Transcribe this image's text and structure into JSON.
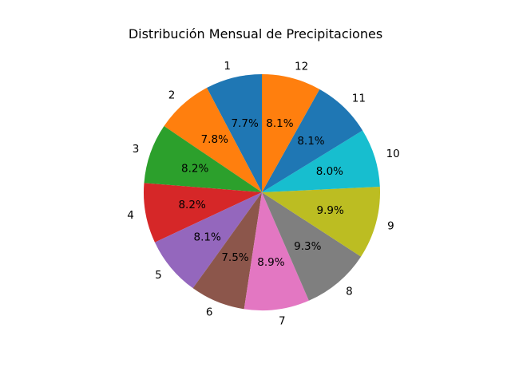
{
  "chart_data": {
    "type": "pie",
    "title": "Distribución Mensual de Precipitaciones",
    "categories": [
      "1",
      "2",
      "3",
      "4",
      "5",
      "6",
      "7",
      "8",
      "9",
      "10",
      "11",
      "12"
    ],
    "values": [
      7.7,
      7.8,
      8.2,
      8.2,
      8.1,
      7.5,
      8.9,
      9.3,
      9.9,
      8.0,
      8.1,
      8.1
    ],
    "value_labels": [
      "7.7%",
      "7.8%",
      "8.2%",
      "8.2%",
      "8.1%",
      "7.5%",
      "8.9%",
      "9.3%",
      "9.9%",
      "8.0%",
      "8.1%",
      "8.1%"
    ],
    "colors": [
      "#1f77b4",
      "#ff7f0e",
      "#2ca02c",
      "#d62728",
      "#9467bd",
      "#8c564b",
      "#e377c2",
      "#7f7f7f",
      "#bcbd22",
      "#17becf",
      "#1f77b4",
      "#ff7f0e"
    ],
    "start_angle": "top",
    "direction": "counterclockwise",
    "legend": "none"
  }
}
